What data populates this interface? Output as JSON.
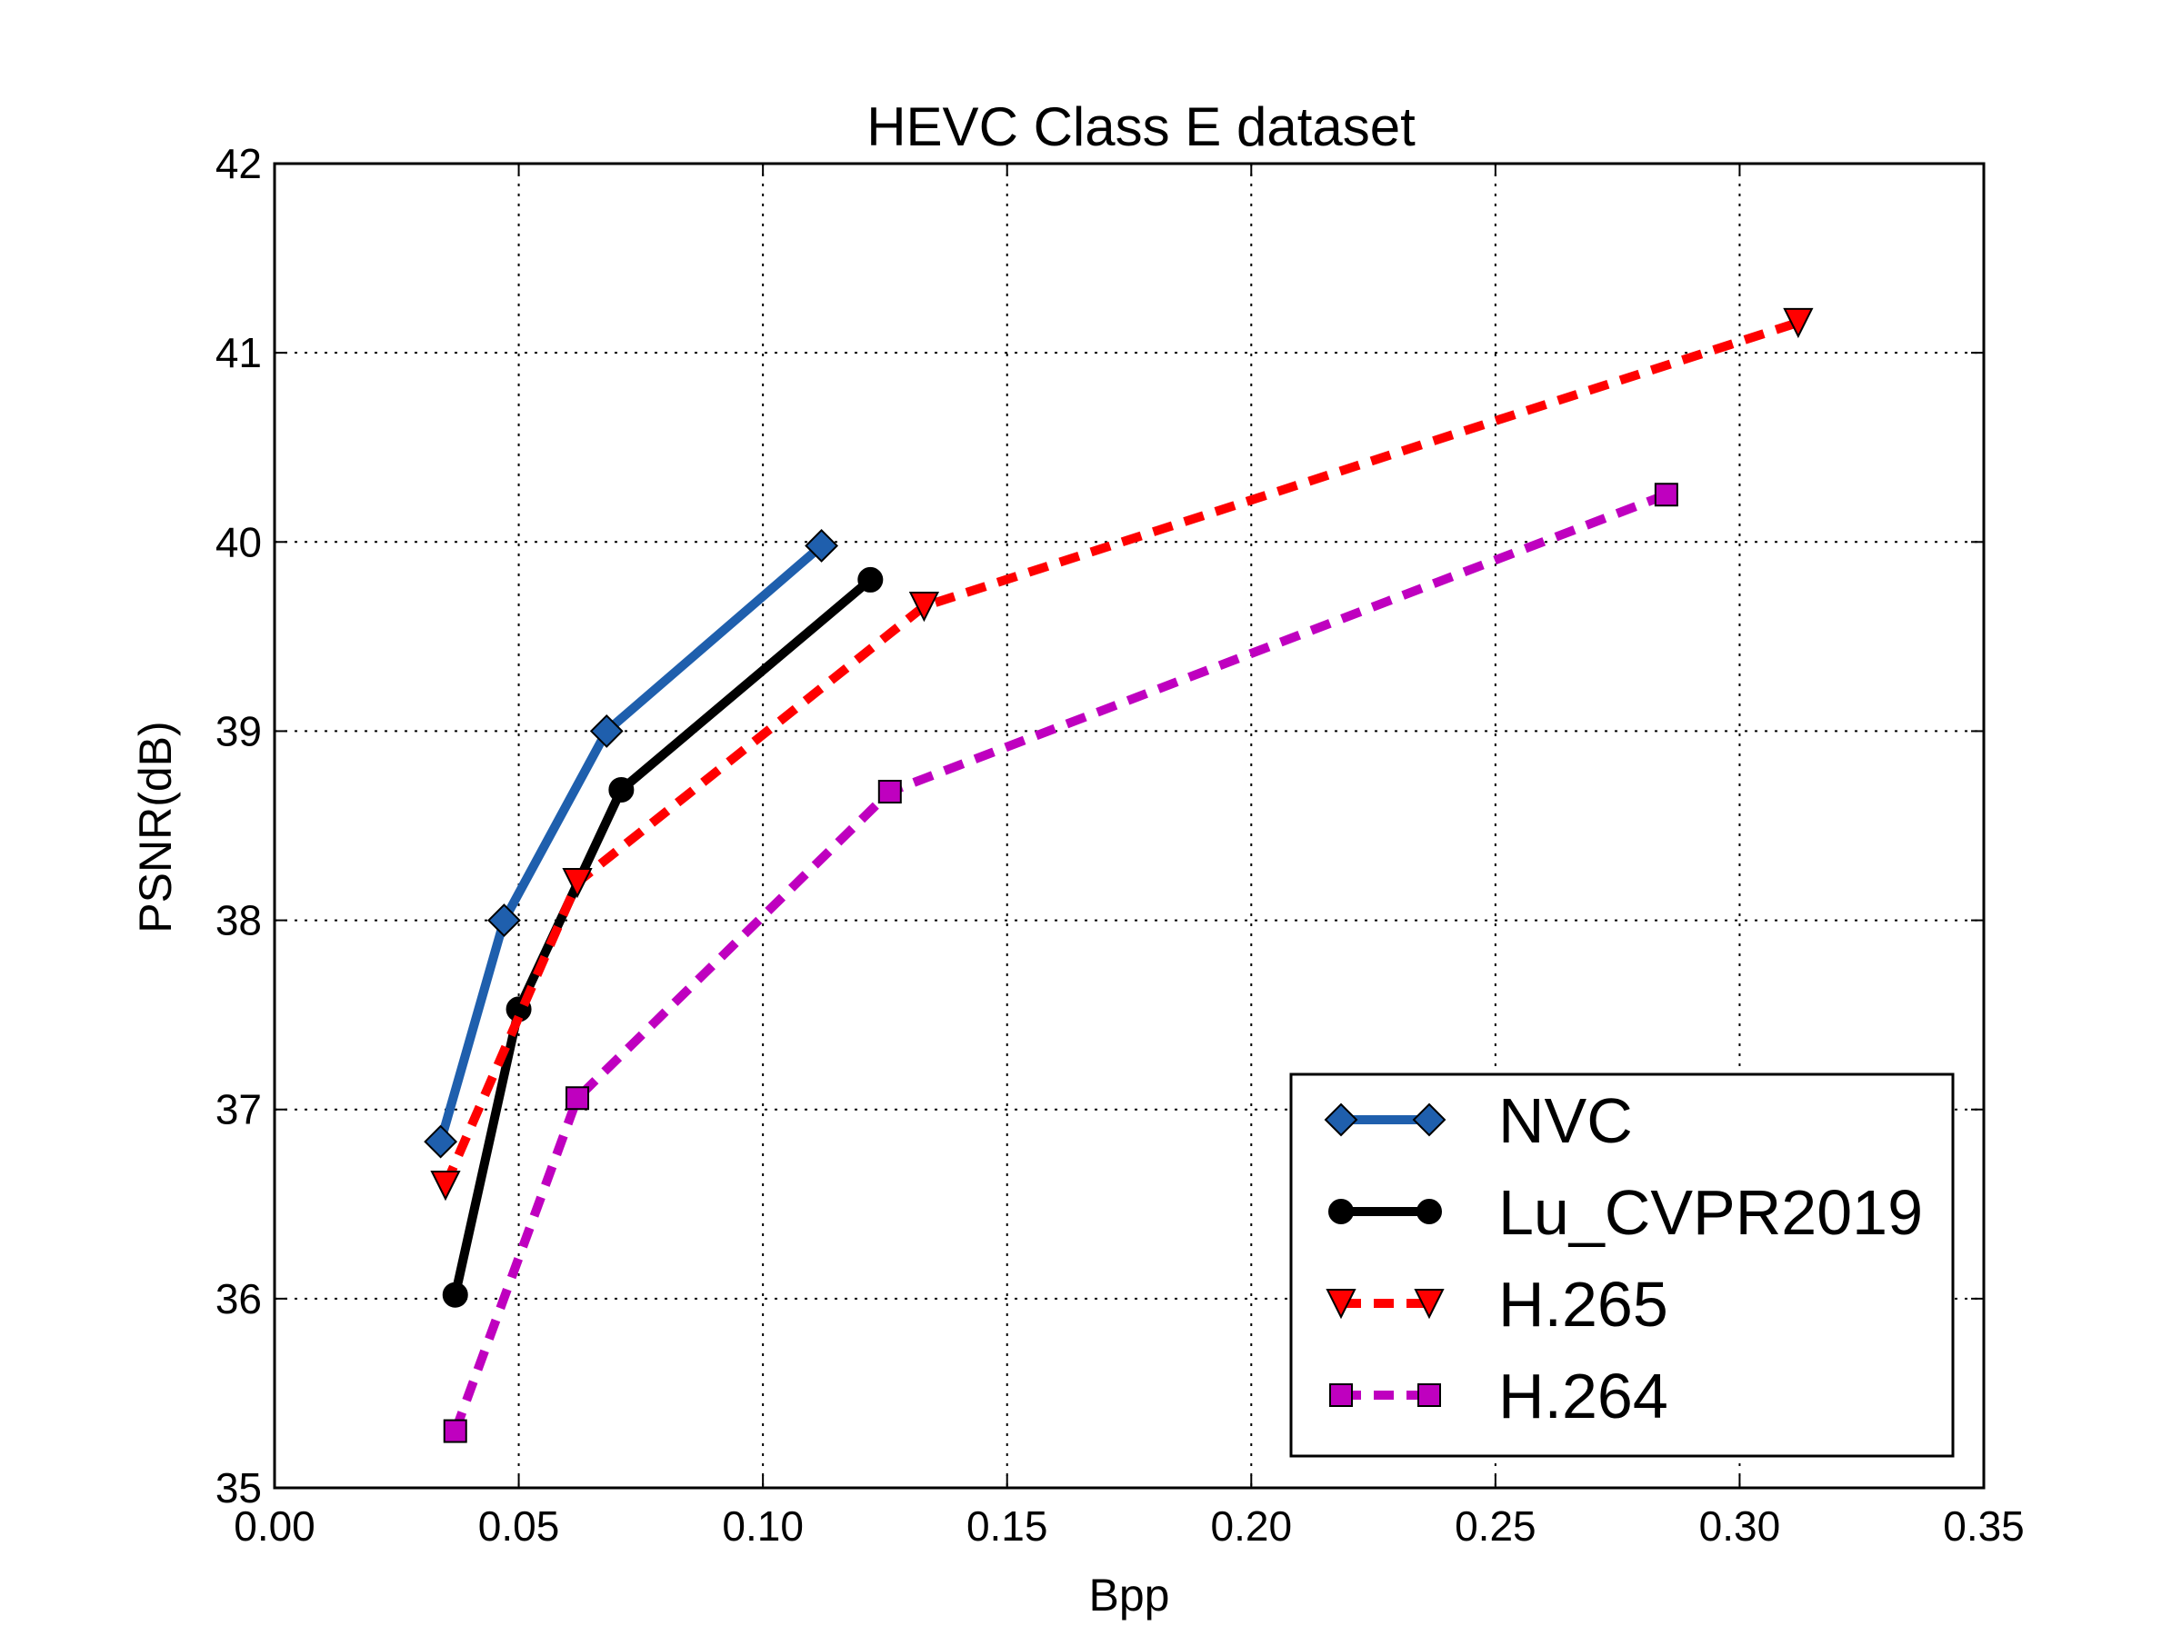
{
  "chart_data": {
    "type": "line",
    "title": "HEVC Class E dataset",
    "xlabel": "Bpp",
    "ylabel": "PSNR(dB)",
    "xlim": [
      0.0,
      0.35
    ],
    "ylim": [
      35,
      42
    ],
    "xticks": [
      "0.00",
      "0.05",
      "0.10",
      "0.15",
      "0.20",
      "0.25",
      "0.30",
      "0.35"
    ],
    "yticks": [
      "35",
      "36",
      "37",
      "38",
      "39",
      "40",
      "41",
      "42"
    ],
    "grid": true,
    "legend_position": "bottom-right",
    "series": [
      {
        "name": "NVC",
        "color": "#1f5fad",
        "line_style": "solid",
        "marker": "diamond",
        "points": [
          [
            0.034,
            36.83
          ],
          [
            0.047,
            38.0
          ],
          [
            0.068,
            39.0
          ],
          [
            0.112,
            39.98
          ]
        ]
      },
      {
        "name": "Lu_CVPR2019",
        "color": "#000000",
        "line_style": "solid",
        "marker": "circle",
        "points": [
          [
            0.037,
            36.02
          ],
          [
            0.05,
            37.53
          ],
          [
            0.071,
            38.69
          ],
          [
            0.122,
            39.8
          ]
        ]
      },
      {
        "name": "H.265",
        "color": "#ff0000",
        "line_style": "dashed",
        "marker": "triangle-down",
        "points": [
          [
            0.035,
            36.6
          ],
          [
            0.062,
            38.2
          ],
          [
            0.133,
            39.66
          ],
          [
            0.312,
            41.16
          ]
        ]
      },
      {
        "name": "H.264",
        "color": "#bf00bf",
        "line_style": "dashed",
        "marker": "square",
        "points": [
          [
            0.037,
            35.3
          ],
          [
            0.062,
            37.06
          ],
          [
            0.126,
            38.68
          ],
          [
            0.285,
            40.25
          ]
        ]
      }
    ]
  }
}
